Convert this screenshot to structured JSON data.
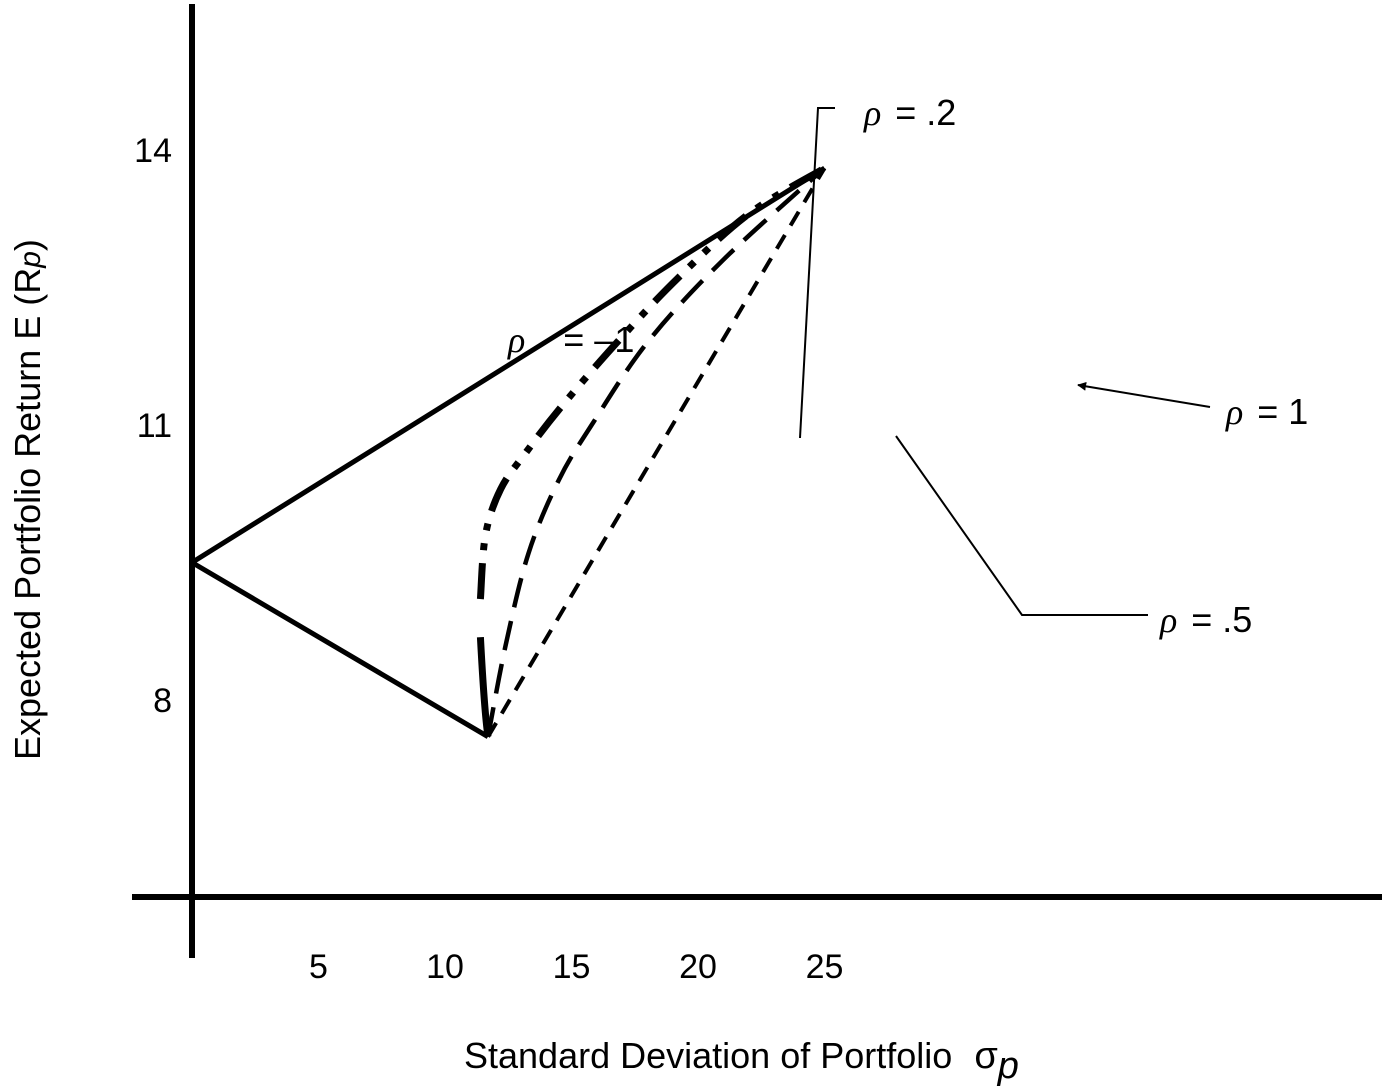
{
  "chart_data": {
    "type": "line",
    "xlabel": "Standard Deviation of Portfolio",
    "xlabel_symbol": "σ",
    "xlabel_sub": "p",
    "ylabel": "Expected Portfolio Return E (R",
    "ylabel_sub": "p",
    "ylabel_close": ")",
    "x_ticks": [
      5,
      10,
      15,
      20,
      25
    ],
    "y_ticks": [
      8,
      11,
      14
    ],
    "xlim": [
      0,
      26
    ],
    "ylim": [
      5.6,
      15.5
    ],
    "grid": false,
    "rho_symbol": "ρ",
    "series": [
      {
        "name": "= –1",
        "style": "solid",
        "points": [
          [
            25,
            13.8
          ],
          [
            0,
            9.5
          ],
          [
            11.7,
            7.6
          ]
        ]
      },
      {
        "name": "= .2",
        "style": "dash-dot-dot",
        "points": [
          [
            11.4,
            9.1
          ],
          [
            11.6,
            9.8
          ],
          [
            12.2,
            10.3
          ],
          [
            13.2,
            10.7
          ],
          [
            14.6,
            11.2
          ],
          [
            16.8,
            11.9
          ],
          [
            19.2,
            12.6
          ],
          [
            22,
            13.3
          ],
          [
            25,
            13.8
          ]
        ]
      },
      {
        "name": "= .5",
        "style": "long-dash",
        "points": [
          [
            11.7,
            7.6
          ],
          [
            12.4,
            8.6
          ],
          [
            13.3,
            9.6
          ],
          [
            14.5,
            10.4
          ],
          [
            15.8,
            11.0
          ],
          [
            18,
            11.9
          ],
          [
            21,
            12.8
          ],
          [
            25,
            13.8
          ]
        ]
      },
      {
        "name": "= 1",
        "style": "short-dash",
        "points": [
          [
            11.7,
            7.6
          ],
          [
            25,
            13.8
          ]
        ]
      }
    ]
  }
}
